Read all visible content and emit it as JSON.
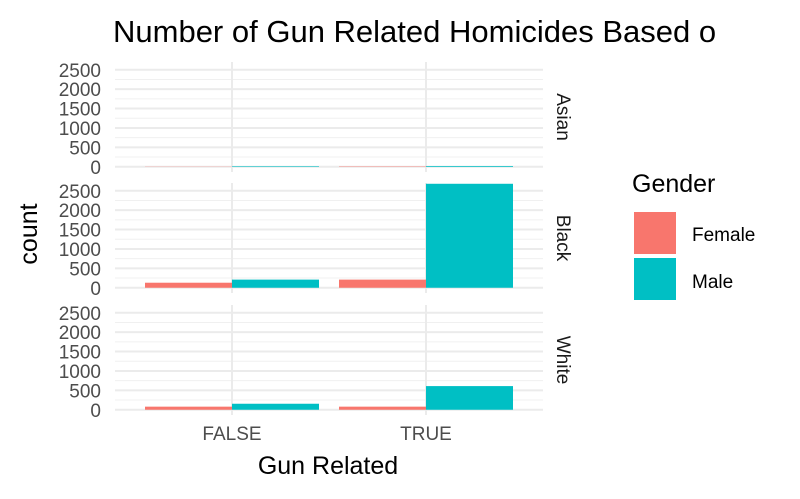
{
  "chart_data": {
    "type": "bar",
    "title": "Number of Gun Related Homicides Based o",
    "xlabel": "Gun Related",
    "ylabel": "count",
    "categories": [
      "FALSE",
      "TRUE"
    ],
    "facets": [
      "Asian",
      "Black",
      "White"
    ],
    "ylim": [
      0,
      2700
    ],
    "y_ticks": [
      0,
      500,
      1000,
      1500,
      2000,
      2500
    ],
    "grid": true,
    "legend": {
      "title": "Gender",
      "position": "right",
      "entries": [
        {
          "label": "Female",
          "color": "#F8766D"
        },
        {
          "label": "Male",
          "color": "#00BFC4"
        }
      ]
    },
    "series": [
      {
        "name": "Female",
        "color": "#F8766D",
        "values": {
          "Asian": [
            5,
            10
          ],
          "Black": [
            130,
            210
          ],
          "White": [
            80,
            80
          ]
        }
      },
      {
        "name": "Male",
        "color": "#00BFC4",
        "values": {
          "Asian": [
            15,
            20
          ],
          "Black": [
            210,
            2680
          ],
          "White": [
            155,
            610
          ]
        }
      }
    ]
  }
}
